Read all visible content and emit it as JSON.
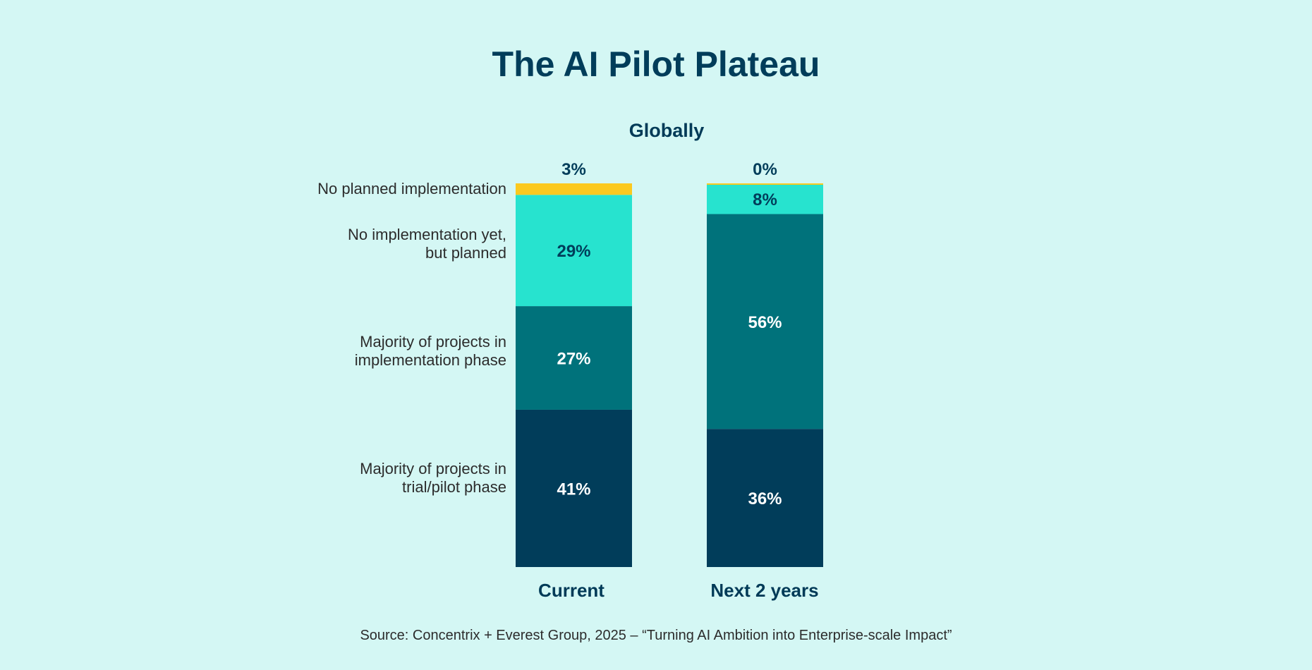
{
  "chart_data": {
    "type": "bar",
    "stacked": true,
    "title": "The AI Pilot Plateau",
    "subtitle": "Globally",
    "categories": [
      "Current",
      "Next 2 years"
    ],
    "series": [
      {
        "name": "Majority of projects in trial/pilot phase",
        "label_lines": [
          "Majority of projects in",
          "trial/pilot phase"
        ],
        "color": "#013d5a",
        "text_color": "#ffffff",
        "values": [
          41,
          36
        ]
      },
      {
        "name": "Majority of projects in implementation phase",
        "label_lines": [
          "Majority of projects in",
          "implementation phase"
        ],
        "color": "#00727b",
        "text_color": "#ffffff",
        "values": [
          27,
          56
        ]
      },
      {
        "name": "No implementation yet, but planned",
        "label_lines": [
          "No implementation yet,",
          "but planned"
        ],
        "color": "#27e3cf",
        "text_color": "#013d5a",
        "values": [
          29,
          8
        ]
      },
      {
        "name": "No planned implementation",
        "label_lines": [
          "No planned implementation"
        ],
        "color": "#fbc91f",
        "text_color": "#013d5a",
        "values": [
          3,
          0
        ]
      }
    ],
    "value_suffix": "%",
    "ylim": [
      0,
      100
    ],
    "grid": false,
    "legend": "left"
  },
  "source": "Source: Concentrix + Everest Group, 2025 – “Turning AI Ambition into Enterprise-scale Impact”"
}
